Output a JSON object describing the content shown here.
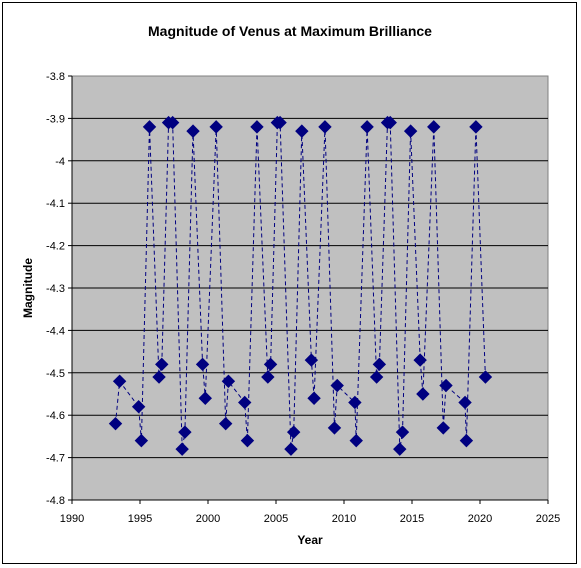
{
  "chart_data": {
    "type": "scatter",
    "title": "Magnitude of Venus at Maximum Brilliance",
    "xlabel": "Year",
    "ylabel": "Magnitude",
    "xlim": [
      1990,
      2025
    ],
    "ylim": [
      -4.8,
      -3.8
    ],
    "xticks": [
      1990,
      1995,
      2000,
      2005,
      2010,
      2015,
      2020,
      2025
    ],
    "yticks": [
      -3.8,
      -3.9,
      -4,
      -4.1,
      -4.2,
      -4.3,
      -4.4,
      -4.5,
      -4.6,
      -4.7,
      -4.8
    ],
    "ytick_labels": [
      "-3.8",
      "-3.9",
      "-4",
      "-4.1",
      "-4.2",
      "-4.3",
      "-4.4",
      "-4.5",
      "-4.6",
      "-4.7",
      "-4.8"
    ],
    "grid": true,
    "line_style": "dashed",
    "marker": "diamond",
    "colors": {
      "series": "#000080",
      "plot_background": "#c0c0c0",
      "gridline": "#000000"
    },
    "series": [
      {
        "x": [
          1993.2,
          1993.5,
          1994.9,
          1995.1,
          1995.7,
          1996.4,
          1996.6,
          1997.1,
          1997.4,
          1998.1,
          1998.3,
          1998.9,
          1999.6,
          1999.8,
          2000.6,
          2001.3,
          2001.5,
          2002.7,
          2002.9,
          2003.6,
          2004.4,
          2004.6,
          2005.1,
          2005.3,
          2006.1,
          2006.3,
          2006.9,
          2007.6,
          2007.8,
          2008.6,
          2009.3,
          2009.5,
          2010.8,
          2010.9,
          2011.7,
          2012.4,
          2012.6,
          2013.2,
          2013.4,
          2014.1,
          2014.3,
          2014.9,
          2015.6,
          2015.8,
          2016.6,
          2017.3,
          2017.5,
          2018.9,
          2019.0,
          2019.7,
          2020.4
        ],
        "y": [
          -4.62,
          -4.52,
          -4.58,
          -4.66,
          -3.92,
          -4.51,
          -4.48,
          -3.91,
          -3.91,
          -4.68,
          -4.64,
          -3.93,
          -4.48,
          -4.56,
          -3.92,
          -4.62,
          -4.52,
          -4.57,
          -4.66,
          -3.92,
          -4.51,
          -4.48,
          -3.91,
          -3.91,
          -4.68,
          -4.64,
          -3.93,
          -4.47,
          -4.56,
          -3.92,
          -4.63,
          -4.53,
          -4.57,
          -4.66,
          -3.92,
          -4.51,
          -4.48,
          -3.91,
          -3.91,
          -4.68,
          -4.64,
          -3.93,
          -4.47,
          -4.55,
          -3.92,
          -4.63,
          -4.53,
          -4.57,
          -4.66,
          -3.92,
          -4.51
        ]
      }
    ]
  }
}
